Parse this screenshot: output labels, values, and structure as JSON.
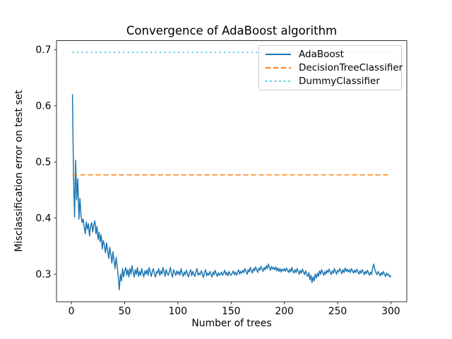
{
  "chart_data": {
    "type": "line",
    "title": "Convergence of AdaBoost algorithm",
    "xlabel": "Number of trees",
    "ylabel": "Misclassification error on test set",
    "xlim": [
      -14,
      315
    ],
    "ylim": [
      0.251,
      0.716
    ],
    "grid": false,
    "background": "#ffffff",
    "x_ticks": {
      "values": [
        0,
        50,
        100,
        150,
        200,
        250,
        300
      ],
      "labels": [
        "0",
        "50",
        "100",
        "150",
        "200",
        "250",
        "300"
      ]
    },
    "y_ticks": {
      "values": [
        0.3,
        0.4,
        0.5,
        0.6,
        0.7
      ],
      "labels": [
        "0.3",
        "0.4",
        "0.5",
        "0.6",
        "0.7"
      ]
    },
    "legend": {
      "position": "upper right",
      "frame_color": "#cccccc",
      "frame_alpha": 0.8
    },
    "series": [
      {
        "name": "AdaBoost",
        "color": "#1f77b4",
        "line_style": "solid",
        "x_start": 1,
        "x_step": 1,
        "values": [
          0.62,
          0.475,
          0.402,
          0.503,
          0.432,
          0.47,
          0.398,
          0.435,
          0.405,
          0.392,
          0.398,
          0.385,
          0.372,
          0.393,
          0.38,
          0.39,
          0.368,
          0.385,
          0.392,
          0.375,
          0.388,
          0.395,
          0.372,
          0.385,
          0.362,
          0.375,
          0.358,
          0.37,
          0.345,
          0.36,
          0.352,
          0.338,
          0.356,
          0.342,
          0.328,
          0.348,
          0.335,
          0.32,
          0.34,
          0.325,
          0.31,
          0.33,
          0.315,
          0.295,
          0.272,
          0.3,
          0.288,
          0.31,
          0.295,
          0.305,
          0.312,
          0.298,
          0.308,
          0.295,
          0.31,
          0.3,
          0.315,
          0.305,
          0.295,
          0.308,
          0.3,
          0.312,
          0.296,
          0.305,
          0.298,
          0.31,
          0.302,
          0.295,
          0.306,
          0.3,
          0.308,
          0.298,
          0.312,
          0.304,
          0.296,
          0.305,
          0.31,
          0.3,
          0.295,
          0.305,
          0.302,
          0.31,
          0.298,
          0.306,
          0.3,
          0.312,
          0.305,
          0.296,
          0.308,
          0.302,
          0.298,
          0.305,
          0.312,
          0.3,
          0.295,
          0.308,
          0.303,
          0.298,
          0.306,
          0.3,
          0.305,
          0.298,
          0.31,
          0.302,
          0.296,
          0.304,
          0.299,
          0.307,
          0.301,
          0.295,
          0.303,
          0.308,
          0.297,
          0.305,
          0.3,
          0.296,
          0.304,
          0.31,
          0.298,
          0.302,
          0.299,
          0.306,
          0.301,
          0.294,
          0.303,
          0.308,
          0.297,
          0.302,
          0.298,
          0.305,
          0.3,
          0.295,
          0.304,
          0.299,
          0.307,
          0.301,
          0.296,
          0.303,
          0.298,
          0.3,
          0.304,
          0.298,
          0.302,
          0.307,
          0.299,
          0.303,
          0.297,
          0.305,
          0.3,
          0.298,
          0.302,
          0.306,
          0.299,
          0.304,
          0.298,
          0.303,
          0.308,
          0.3,
          0.305,
          0.302,
          0.307,
          0.303,
          0.31,
          0.305,
          0.3,
          0.308,
          0.304,
          0.312,
          0.306,
          0.302,
          0.31,
          0.306,
          0.313,
          0.308,
          0.303,
          0.311,
          0.307,
          0.314,
          0.309,
          0.305,
          0.312,
          0.308,
          0.315,
          0.31,
          0.318,
          0.312,
          0.307,
          0.314,
          0.309,
          0.312,
          0.308,
          0.313,
          0.306,
          0.311,
          0.305,
          0.31,
          0.304,
          0.309,
          0.306,
          0.31,
          0.305,
          0.311,
          0.307,
          0.303,
          0.309,
          0.304,
          0.312,
          0.306,
          0.302,
          0.308,
          0.303,
          0.31,
          0.305,
          0.3,
          0.307,
          0.302,
          0.309,
          0.304,
          0.299,
          0.306,
          0.3,
          0.296,
          0.303,
          0.29,
          0.298,
          0.285,
          0.295,
          0.288,
          0.3,
          0.293,
          0.302,
          0.296,
          0.306,
          0.3,
          0.308,
          0.303,
          0.298,
          0.305,
          0.3,
          0.307,
          0.303,
          0.309,
          0.304,
          0.299,
          0.306,
          0.302,
          0.31,
          0.305,
          0.3,
          0.307,
          0.304,
          0.31,
          0.306,
          0.301,
          0.308,
          0.303,
          0.311,
          0.305,
          0.309,
          0.304,
          0.308,
          0.303,
          0.31,
          0.306,
          0.302,
          0.307,
          0.303,
          0.309,
          0.305,
          0.3,
          0.306,
          0.302,
          0.308,
          0.304,
          0.299,
          0.305,
          0.301,
          0.307,
          0.303,
          0.298,
          0.304,
          0.3,
          0.312,
          0.318,
          0.308,
          0.303,
          0.299,
          0.305,
          0.301,
          0.297,
          0.303,
          0.299,
          0.305,
          0.3,
          0.296,
          0.302,
          0.298,
          0.3,
          0.295,
          0.297
        ]
      },
      {
        "name": "DecisionTreeClassifier",
        "color": "#ff7f0e",
        "line_style": "dashed",
        "constant_value": 0.477,
        "x_range": [
          1,
          300
        ]
      },
      {
        "name": "DummyClassifier",
        "color": "#17becf",
        "line_style": "dotted",
        "constant_value": 0.695,
        "x_range": [
          1,
          300
        ]
      }
    ]
  }
}
